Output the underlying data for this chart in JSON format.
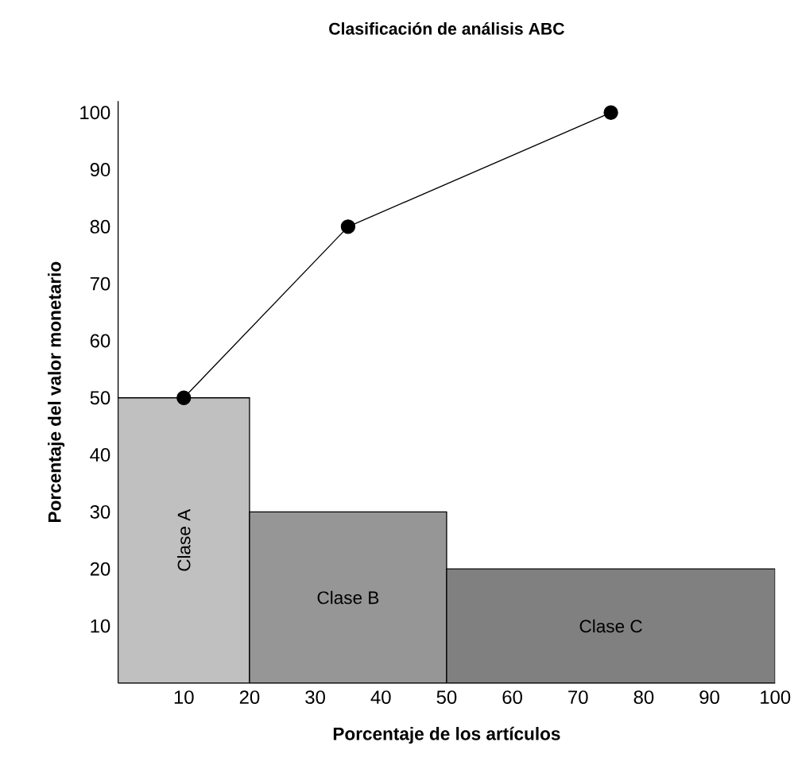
{
  "chart_data": {
    "type": "histogram",
    "title": "Clasificación de análisis ABC",
    "xlabel": "Porcentaje de los artículos",
    "ylabel": "Porcentaje del valor monetario",
    "series": [
      {
        "bins": [
          0,
          20,
          50,
          100
        ],
        "values": [
          50,
          30,
          20
        ],
        "colors": [
          "#c0c0c0",
          "#969696",
          "#808080"
        ]
      },
      {
        "type": "line",
        "x": [
          10,
          35,
          75
        ],
        "values": [
          50,
          80,
          100
        ],
        "color": "#000000"
      }
    ],
    "marker": "circle",
    "xlim": [
      0,
      100
    ],
    "ylim": [
      0,
      102
    ],
    "xticks": [
      10,
      20,
      30,
      40,
      50,
      60,
      70,
      80,
      90,
      100
    ],
    "yticks": [
      10,
      20,
      30,
      40,
      50,
      60,
      70,
      80,
      90,
      100
    ],
    "annotations": [
      "Clase A",
      "Clase B",
      "Clase C"
    ]
  }
}
